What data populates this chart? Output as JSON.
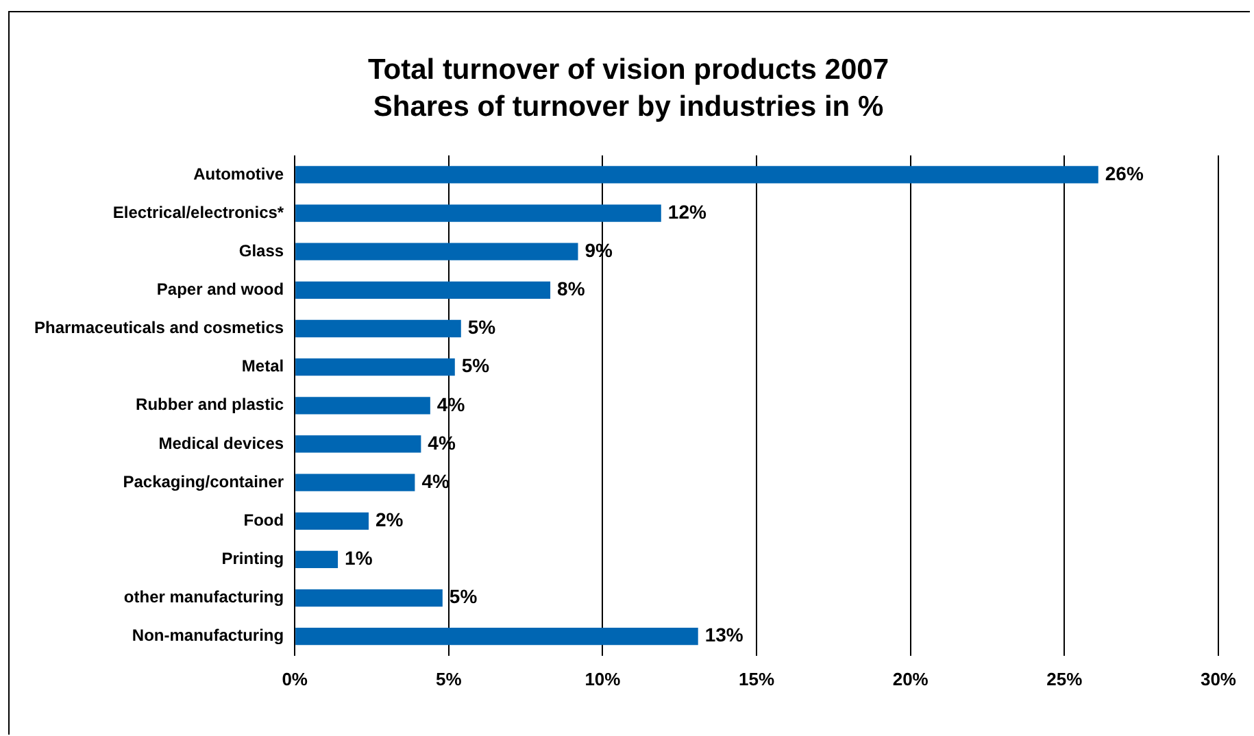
{
  "chart_data": {
    "type": "bar",
    "orientation": "horizontal",
    "title": "Total turnover of vision products 2007",
    "subtitle": "Shares of turnover by industries in %",
    "categories": [
      "Automotive",
      "Electrical/electronics*",
      "Glass",
      "Paper and wood",
      "Pharmaceuticals and cosmetics",
      "Metal",
      "Rubber and plastic",
      "Medical devices",
      "Packaging/container",
      "Food",
      "Printing",
      "other manufacturing",
      "Non-manufacturing"
    ],
    "values": [
      26.1,
      11.9,
      9.2,
      8.3,
      5.4,
      5.2,
      4.4,
      4.1,
      3.9,
      2.4,
      1.4,
      4.8,
      13.1
    ],
    "value_labels": [
      "26%",
      "12%",
      "9%",
      "8%",
      "5%",
      "5%",
      "4%",
      "4%",
      "4%",
      "2%",
      "1%",
      "5%",
      "13%"
    ],
    "color": "#0066b3",
    "xlim": [
      0,
      30
    ],
    "xticks": [
      {
        "value": 0,
        "label": "0%"
      },
      {
        "value": 5,
        "label": "5%"
      },
      {
        "value": 10,
        "label": "10%"
      },
      {
        "value": 15,
        "label": "15%"
      },
      {
        "value": 20,
        "label": "20%"
      },
      {
        "value": 25,
        "label": "25%"
      },
      {
        "value": 30,
        "label": "30%"
      }
    ],
    "grid": "x"
  }
}
